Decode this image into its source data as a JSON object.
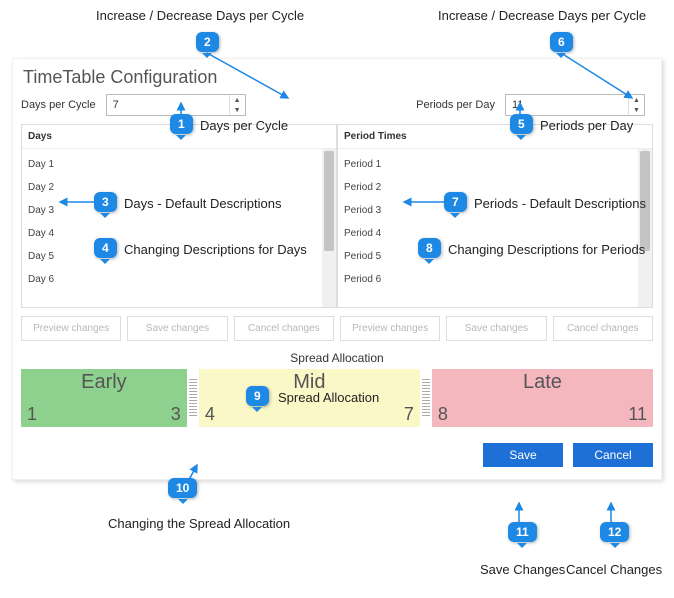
{
  "title": "TimeTable Configuration",
  "spinners": {
    "days_label": "Days per Cycle",
    "days_value": "7",
    "periods_label": "Periods per Day",
    "periods_value": "11"
  },
  "lists": {
    "days_header": "Days",
    "days_items": [
      "Day 1",
      "Day 2",
      "Day 3",
      "Day 4",
      "Day 5",
      "Day 6"
    ],
    "periods_header": "Period Times",
    "periods_items": [
      "Period 1",
      "Period 2",
      "Period 3",
      "Period 4",
      "Period 5",
      "Period 6"
    ]
  },
  "list_buttons": {
    "preview": "Preview changes",
    "save": "Save changes",
    "cancel": "Cancel changes"
  },
  "spread": {
    "title": "Spread Allocation",
    "segments": [
      {
        "name": "Early",
        "from": "1",
        "to": "3",
        "bg": "#8ed08e",
        "flex": 3
      },
      {
        "name": "Mid",
        "from": "4",
        "to": "7",
        "bg": "#fbf8c8",
        "flex": 4
      },
      {
        "name": "Late",
        "from": "8",
        "to": "11",
        "bg": "#f5b7be",
        "flex": 4
      }
    ]
  },
  "actions": {
    "save": "Save",
    "cancel": "Cancel",
    "save_bg": "#1e6fd6",
    "cancel_bg": "#1e6fd6"
  },
  "annotations": {
    "top_left_label": "Increase / Decrease Days per Cycle",
    "top_right_label": "Increase / Decrease Days per Cycle",
    "a1": "Days per Cycle",
    "a3": "Days - Default Descriptions",
    "a4": "Changing Descriptions for Days",
    "a5": "Periods per Day",
    "a7": "Periods - Default Descriptions",
    "a8": "Changing Descriptions for Periods",
    "a9": "Spread Allocation",
    "a10": "Changing the Spread Allocation",
    "a11": "Save Changes",
    "a12": "Cancel Changes",
    "callout_color": "#1e88e5"
  }
}
